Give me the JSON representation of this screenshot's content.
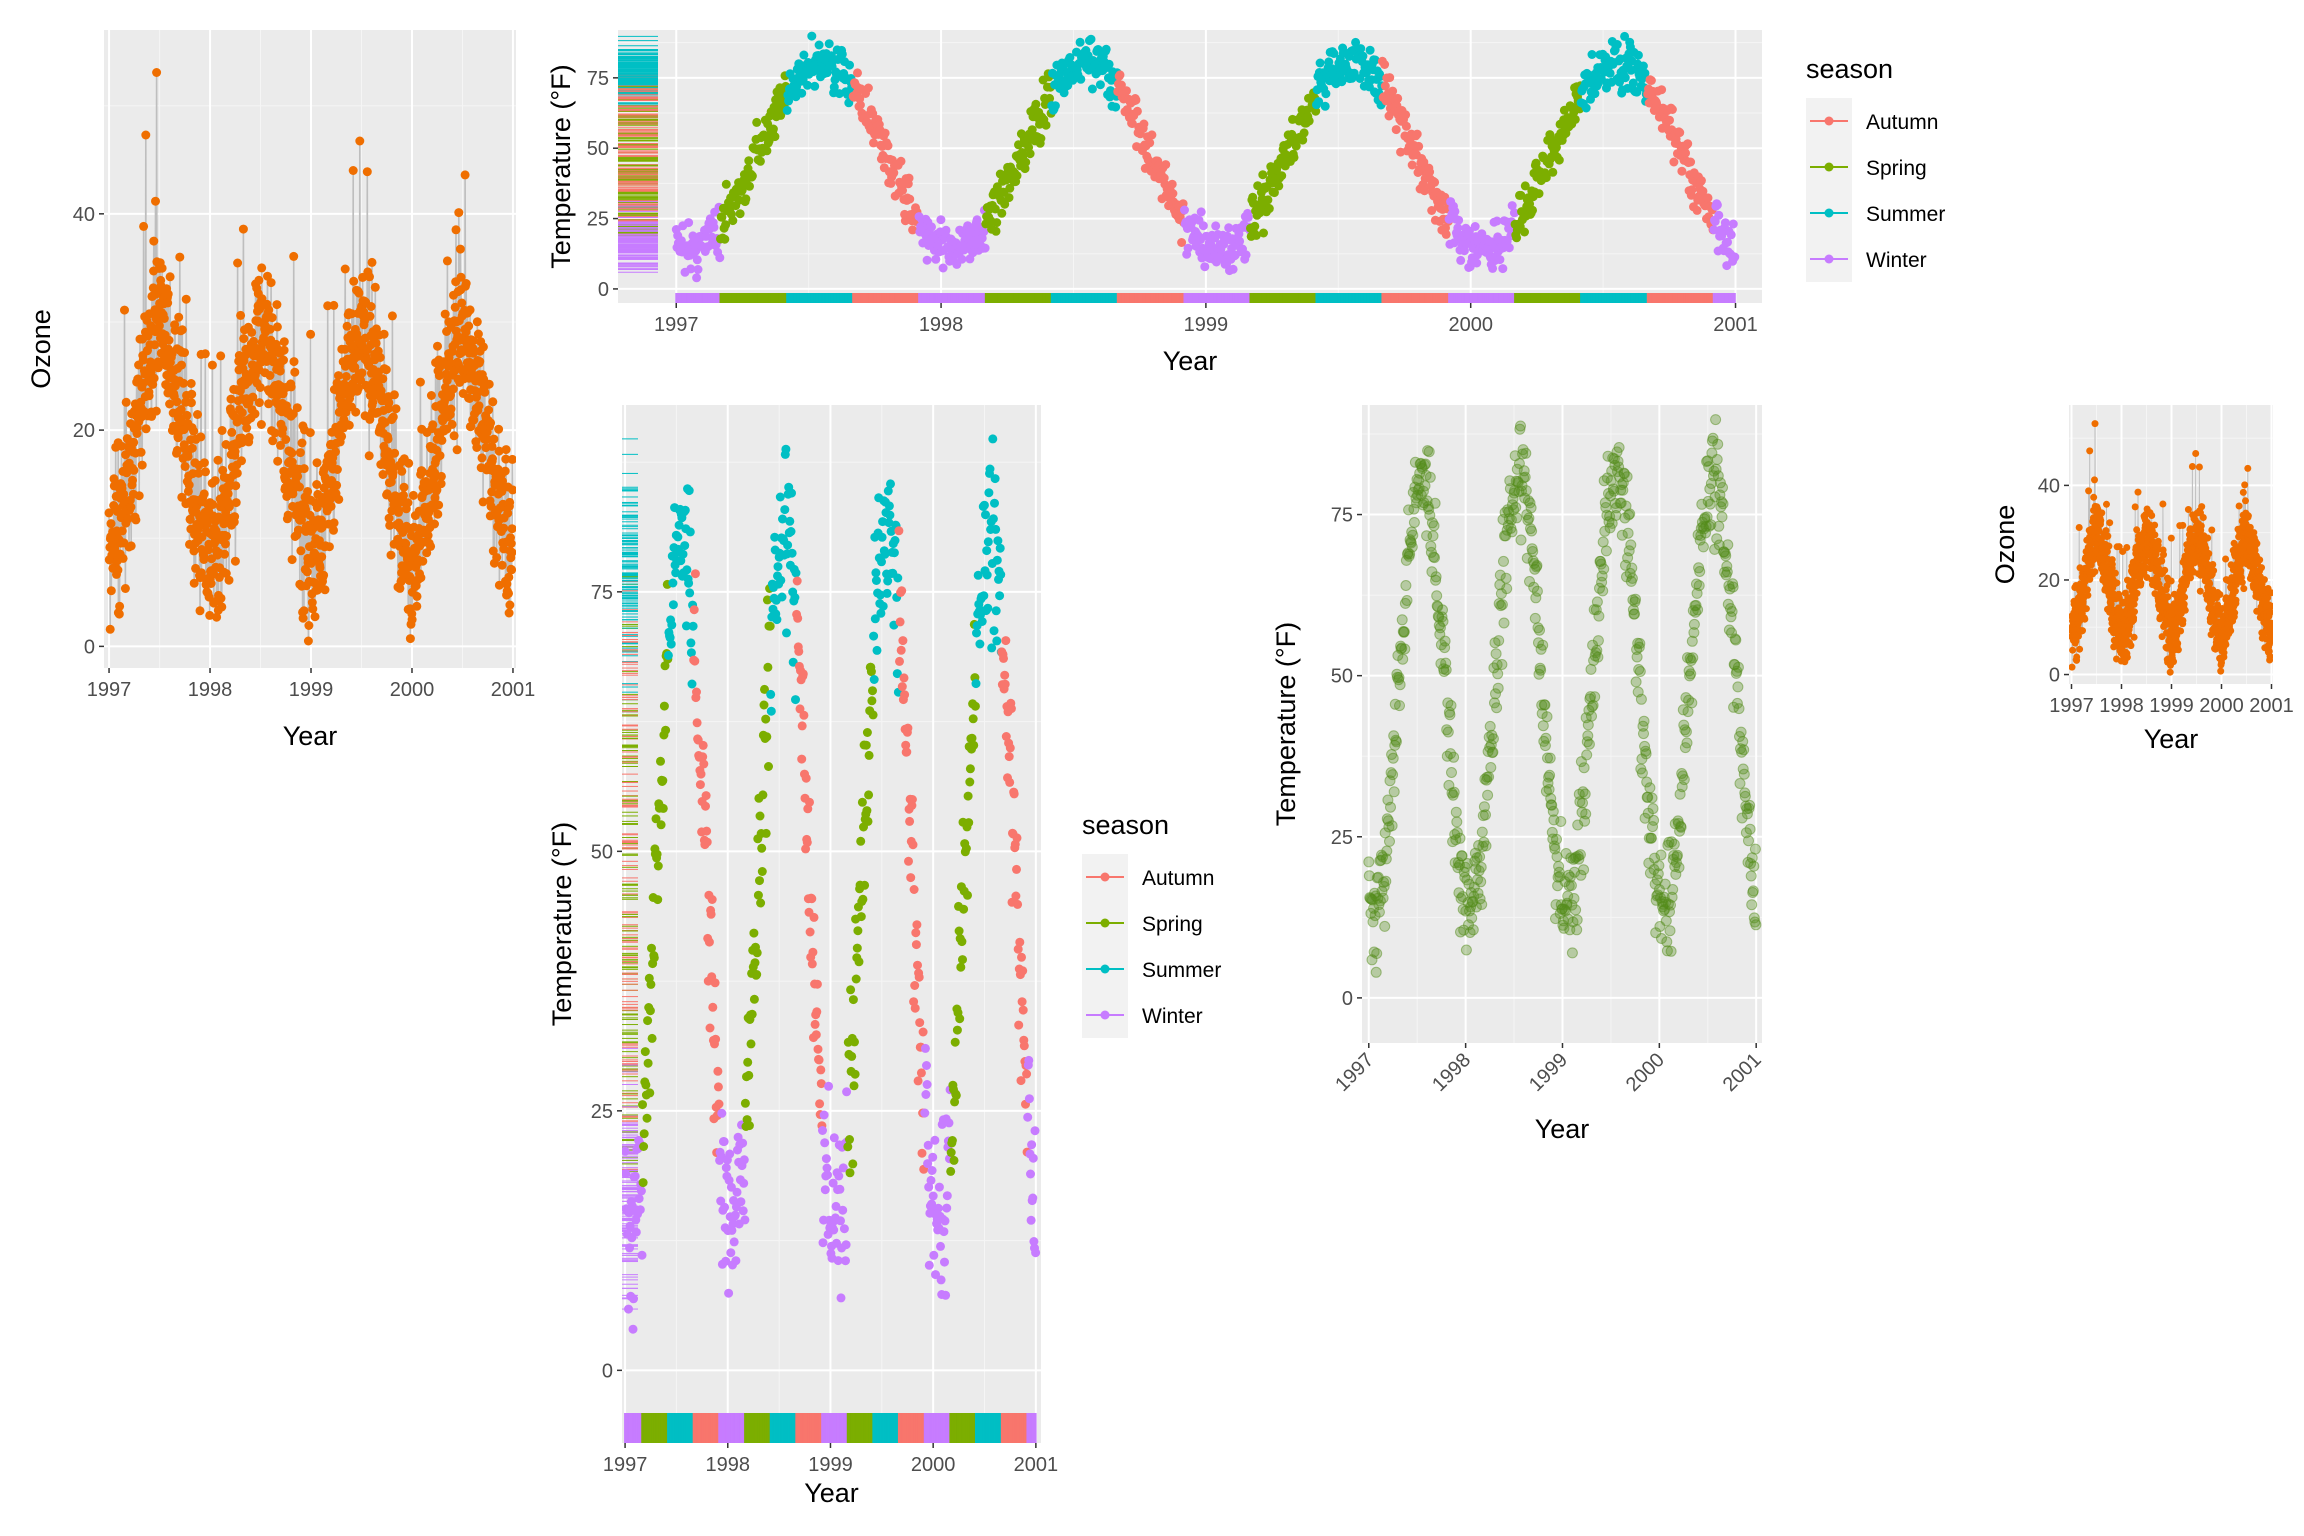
{
  "chart_data": [
    {
      "id": "ozone-large",
      "type": "line+scatter",
      "xlabel": "Year",
      "ylabel": "Ozone",
      "x_ticks": [
        "1997",
        "1998",
        "1999",
        "2000",
        "2001"
      ],
      "y_ticks": [
        0,
        20,
        40
      ],
      "xlim": [
        1996.95,
        2001.03
      ],
      "ylim": [
        -2,
        57
      ],
      "grid": true,
      "line_color": "#bebebe",
      "point_color": "#ef6e00",
      "series": [
        {
          "x_range": [
            1997,
            2001
          ],
          "value_range": [
            0,
            55
          ],
          "annual_peak": "early summer",
          "pattern": "daily ozone, annual cycle 5 to 55"
        }
      ]
    },
    {
      "id": "temperature-wide",
      "type": "scatter",
      "xlabel": "Year",
      "ylabel": "Temperature (°F)",
      "x_ticks": [
        "1997",
        "1998",
        "1999",
        "2000",
        "2001"
      ],
      "y_ticks": [
        0,
        25,
        50,
        75
      ],
      "xlim": [
        1996.78,
        2001.1
      ],
      "ylim": [
        -5,
        92
      ],
      "grid": true,
      "rug": [
        "left",
        "bottom"
      ],
      "legend_title": "season",
      "legend_position": "right",
      "series": [
        {
          "name": "Autumn",
          "color": "#f8766d"
        },
        {
          "name": "Spring",
          "color": "#7cae00"
        },
        {
          "name": "Summer",
          "color": "#00bfc4"
        },
        {
          "name": "Winter",
          "color": "#c77cff"
        }
      ]
    },
    {
      "id": "temperature-tall",
      "type": "scatter",
      "xlabel": "Year",
      "ylabel": "Temperature (°F)",
      "x_ticks": [
        "1997",
        "1998",
        "1999",
        "2000",
        "2001"
      ],
      "y_ticks": [
        0,
        25,
        50,
        75
      ],
      "xlim": [
        1996.97,
        2001.05
      ],
      "ylim": [
        -7,
        93
      ],
      "grid": true,
      "rug": [
        "left",
        "bottom"
      ],
      "legend_title": "season",
      "legend_position": "right",
      "series": [
        {
          "name": "Autumn",
          "color": "#f8766d"
        },
        {
          "name": "Spring",
          "color": "#7cae00"
        },
        {
          "name": "Summer",
          "color": "#00bfc4"
        },
        {
          "name": "Winter",
          "color": "#c77cff"
        }
      ]
    },
    {
      "id": "temperature-green",
      "type": "scatter",
      "xlabel": "Year",
      "ylabel": "Temperature (°F)",
      "x_ticks": [
        "1997",
        "1998",
        "1999",
        "2000",
        "2001"
      ],
      "x_tick_rotation": 45,
      "y_ticks": [
        0,
        25,
        50,
        75
      ],
      "xlim": [
        1996.93,
        2001.06
      ],
      "ylim": [
        -7,
        92
      ],
      "grid": true,
      "point_color": "#548b1a",
      "point_alpha": 0.35
    },
    {
      "id": "ozone-small",
      "type": "line+scatter",
      "xlabel": "Year",
      "ylabel": "Ozone",
      "x_ticks": [
        "1997",
        "1998",
        "1999",
        "2000",
        "2001"
      ],
      "y_ticks": [
        0,
        20,
        40
      ],
      "xlim": [
        1996.95,
        2001.03
      ],
      "ylim": [
        -2,
        57
      ],
      "grid": true,
      "line_color": "#bebebe",
      "point_color": "#ef6e00"
    }
  ]
}
